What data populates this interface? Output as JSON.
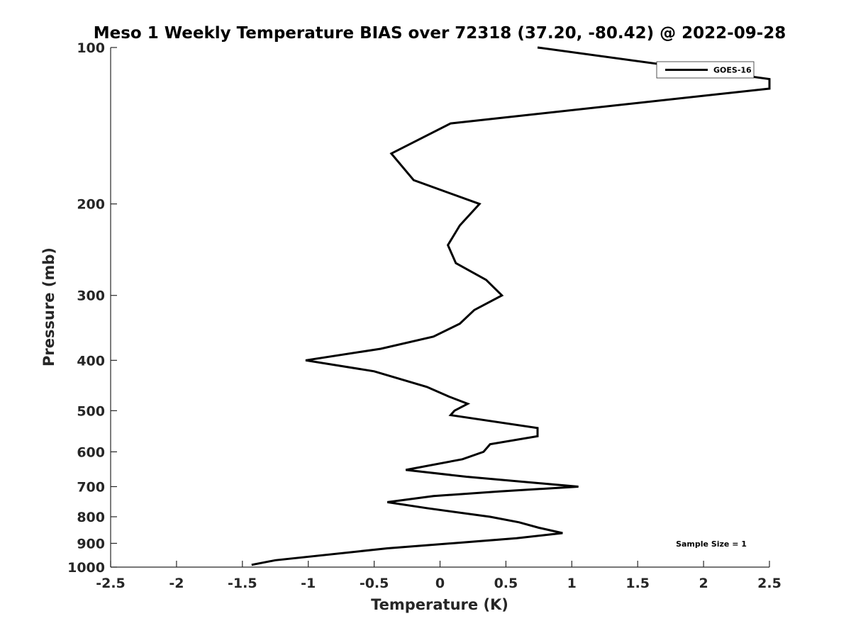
{
  "chart_data": {
    "type": "line",
    "title": "Meso 1 Weekly Temperature BIAS over 72318 (37.20, -80.42) @ 2022-09-28",
    "xlabel": "Temperature (K)",
    "ylabel": "Pressure (mb)",
    "xlim": [
      -2.5,
      2.5
    ],
    "ylim": [
      100,
      1000
    ],
    "y_scale": "log",
    "y_reversed": true,
    "xticks": [
      "-2.5",
      "-2",
      "-1.5",
      "-1",
      "-0.5",
      "0",
      "0.5",
      "1",
      "1.5",
      "2",
      "2.5"
    ],
    "yticks": [
      "100",
      "200",
      "300",
      "400",
      "500",
      "600",
      "700",
      "800",
      "900",
      "1000"
    ],
    "grid": false,
    "legend": "top-right",
    "annotation": "Sample Size = 1",
    "series": [
      {
        "name": "GOES-16",
        "color": "#000000",
        "points": [
          [
            0.74,
            100
          ],
          [
            2.5,
            115
          ],
          [
            2.5,
            120
          ],
          [
            0.08,
            140
          ],
          [
            -0.37,
            160
          ],
          [
            -0.2,
            180
          ],
          [
            0.3,
            200
          ],
          [
            0.15,
            220
          ],
          [
            0.06,
            240
          ],
          [
            0.12,
            260
          ],
          [
            0.35,
            280
          ],
          [
            0.47,
            300
          ],
          [
            0.26,
            320
          ],
          [
            0.15,
            340
          ],
          [
            -0.05,
            360
          ],
          [
            -0.45,
            380
          ],
          [
            -1.02,
            400
          ],
          [
            -0.5,
            420
          ],
          [
            -0.1,
            450
          ],
          [
            0.07,
            470
          ],
          [
            0.21,
            485
          ],
          [
            0.11,
            500
          ],
          [
            0.08,
            510
          ],
          [
            0.74,
            540
          ],
          [
            0.74,
            560
          ],
          [
            0.38,
            580
          ],
          [
            0.33,
            600
          ],
          [
            0.17,
            620
          ],
          [
            -0.26,
            650
          ],
          [
            0.2,
            670
          ],
          [
            1.05,
            700
          ],
          [
            0.45,
            715
          ],
          [
            -0.05,
            730
          ],
          [
            -0.4,
            750
          ],
          [
            -0.1,
            770
          ],
          [
            0.38,
            800
          ],
          [
            0.6,
            820
          ],
          [
            0.75,
            840
          ],
          [
            0.93,
            860
          ],
          [
            0.58,
            880
          ],
          [
            -0.4,
            920
          ],
          [
            -1.25,
            970
          ],
          [
            -1.43,
            990
          ]
        ]
      }
    ]
  }
}
